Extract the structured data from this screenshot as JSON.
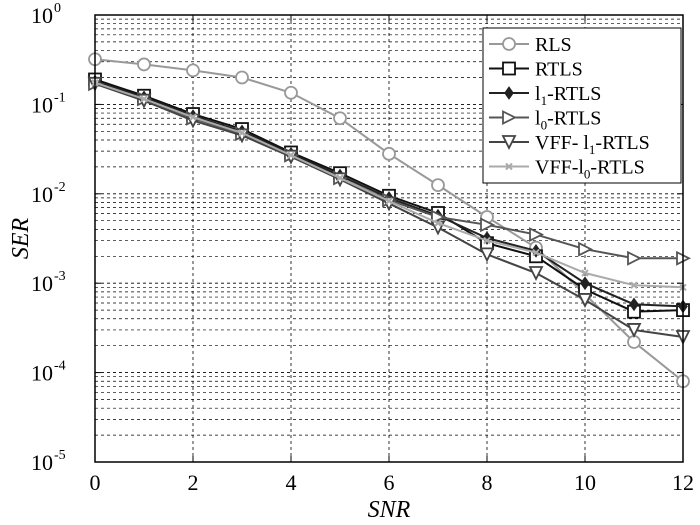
{
  "chart_data": {
    "type": "line",
    "xlabel": "SNR",
    "ylabel": "SER",
    "xlim": [
      0,
      12
    ],
    "ylim": [
      1e-05,
      1
    ],
    "yscale": "log",
    "grid": true,
    "legend_position": "top-right",
    "x_ticks": [
      "0",
      "2",
      "4",
      "6",
      "8",
      "10",
      "12"
    ],
    "y_ticks": [
      {
        "base": "10",
        "exp": "0"
      },
      {
        "base": "10",
        "exp": "-1"
      },
      {
        "base": "10",
        "exp": "-2"
      },
      {
        "base": "10",
        "exp": "-3"
      },
      {
        "base": "10",
        "exp": "-4"
      },
      {
        "base": "10",
        "exp": "-5"
      }
    ],
    "x": [
      0,
      1,
      2,
      3,
      4,
      5,
      6,
      7,
      8,
      9,
      10,
      11,
      12
    ],
    "series": [
      {
        "name": "RLS",
        "legend_main": "RLS",
        "legend_sub": "",
        "legend_tail": "",
        "color": "#999999",
        "width": 2,
        "marker": "circle",
        "values": [
          0.32,
          0.28,
          0.24,
          0.2,
          0.135,
          0.07,
          0.028,
          0.0125,
          0.0055,
          0.0025,
          0.00075,
          0.00022,
          8e-05
        ]
      },
      {
        "name": "RTLS",
        "legend_main": "RTLS",
        "legend_sub": "",
        "legend_tail": "",
        "color": "#111111",
        "width": 2,
        "marker": "square",
        "values": [
          0.19,
          0.125,
          0.078,
          0.053,
          0.029,
          0.017,
          0.0095,
          0.0061,
          0.0028,
          0.002,
          0.00085,
          0.00048,
          0.0005
        ]
      },
      {
        "name": "l1-RTLS",
        "legend_main": "l",
        "legend_sub": "1",
        "legend_tail": "-RTLS",
        "color": "#222222",
        "width": 2,
        "marker": "diamond",
        "values": [
          0.18,
          0.12,
          0.074,
          0.05,
          0.028,
          0.016,
          0.009,
          0.0057,
          0.0032,
          0.0023,
          0.001,
          0.00058,
          0.00055
        ]
      },
      {
        "name": "l0-RTLS",
        "legend_main": "l",
        "legend_sub": "0",
        "legend_tail": "-RTLS",
        "color": "#555555",
        "width": 2,
        "marker": "tri-right",
        "values": [
          0.17,
          0.115,
          0.07,
          0.047,
          0.027,
          0.015,
          0.0085,
          0.0055,
          0.0045,
          0.0035,
          0.0024,
          0.0019,
          0.0019
        ]
      },
      {
        "name": "VFF- l1-RTLS",
        "legend_main": "VFF- l",
        "legend_sub": "1",
        "legend_tail": "-RTLS",
        "color": "#444444",
        "width": 2,
        "marker": "tri-down",
        "values": [
          0.17,
          0.11,
          0.066,
          0.045,
          0.026,
          0.0145,
          0.0078,
          0.0042,
          0.0021,
          0.0013,
          0.00065,
          0.0003,
          0.00025
        ]
      },
      {
        "name": "VFF-l0-RTLS",
        "legend_main": "VFF-l",
        "legend_sub": "0",
        "legend_tail": "-RTLS",
        "color": "#aaaaaa",
        "width": 2,
        "marker": "x",
        "values": [
          0.175,
          0.115,
          0.072,
          0.048,
          0.027,
          0.015,
          0.0083,
          0.0047,
          0.003,
          0.0022,
          0.0013,
          0.00095,
          0.0009
        ]
      }
    ]
  }
}
